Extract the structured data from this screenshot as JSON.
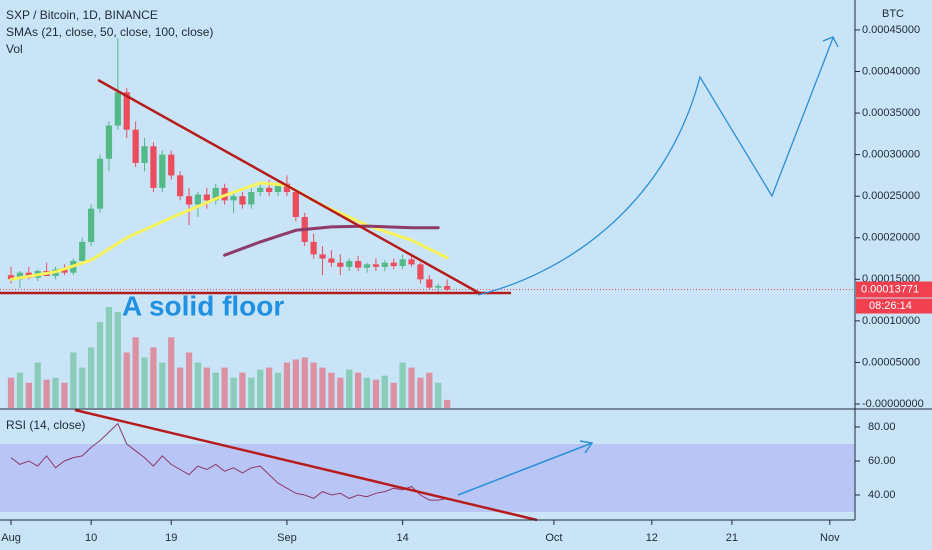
{
  "chart_data": [
    {
      "type": "candlestick",
      "title": "SXP / Bitcoin, 1D, BINANCE",
      "indicators": [
        "SMAs (21, close, 50, close, 100, close)",
        "Vol"
      ],
      "axis_label": "BTC",
      "annotations": [
        "A solid floor"
      ],
      "last_value_label": "0.00013771",
      "countdown": "08:26:14",
      "up_color": "#53b987",
      "down_color": "#eb4d5c",
      "x": [
        0,
        1,
        2,
        3,
        4,
        5,
        6,
        7,
        8,
        9,
        10,
        11,
        12,
        13,
        14,
        15,
        16,
        17,
        18,
        19,
        20,
        21,
        22,
        23,
        24,
        25,
        26,
        27,
        28,
        29,
        30,
        31,
        32,
        33,
        34,
        35,
        36,
        37,
        38,
        39,
        40,
        41,
        42,
        43,
        44,
        45,
        46,
        47,
        48,
        49
      ],
      "open": [
        0.000155,
        0.00015,
        0.000158,
        0.000152,
        0.00016,
        0.000154,
        0.000162,
        0.000158,
        0.000172,
        0.000195,
        0.000235,
        0.000295,
        0.000335,
        0.000375,
        0.00033,
        0.00029,
        0.00031,
        0.00026,
        0.0003,
        0.000275,
        0.00025,
        0.00024,
        0.000252,
        0.000245,
        0.00026,
        0.000245,
        0.00025,
        0.00024,
        0.000255,
        0.00026,
        0.000255,
        0.000265,
        0.000255,
        0.000225,
        0.000195,
        0.00018,
        0.000175,
        0.00017,
        0.000165,
        0.000172,
        0.000164,
        0.000168,
        0.000165,
        0.00017,
        0.000166,
        0.000174,
        0.000168,
        0.00015,
        0.00014,
        0.000142
      ],
      "high": [
        0.000165,
        0.00016,
        0.000165,
        0.000162,
        0.00017,
        0.000165,
        0.000168,
        0.000175,
        0.0002,
        0.00024,
        0.0003,
        0.00034,
        0.00044,
        0.00038,
        0.00034,
        0.00032,
        0.000315,
        0.000305,
        0.000305,
        0.00028,
        0.00026,
        0.000255,
        0.00026,
        0.000265,
        0.000265,
        0.000255,
        0.000255,
        0.00026,
        0.000265,
        0.00027,
        0.00027,
        0.000275,
        0.000258,
        0.00023,
        0.000205,
        0.00019,
        0.000185,
        0.00018,
        0.000175,
        0.000178,
        0.00017,
        0.000175,
        0.000173,
        0.000175,
        0.00018,
        0.00018,
        0.00017,
        0.000155,
        0.000145,
        0.00015
      ],
      "low": [
        0.000145,
        0.00014,
        0.00015,
        0.000148,
        0.000155,
        0.00015,
        0.000155,
        0.000155,
        0.00017,
        0.00019,
        0.00023,
        0.00028,
        0.00033,
        0.00032,
        0.000285,
        0.00028,
        0.000255,
        0.000255,
        0.00027,
        0.000245,
        0.000215,
        0.000225,
        0.000235,
        0.00024,
        0.00024,
        0.00023,
        0.000235,
        0.000235,
        0.00025,
        0.00025,
        0.00025,
        0.00025,
        0.00022,
        0.00019,
        0.000175,
        0.000155,
        0.000165,
        0.000155,
        0.00016,
        0.00016,
        0.000158,
        0.00016,
        0.00016,
        0.000162,
        0.000162,
        0.000165,
        0.000145,
        0.000138,
        0.000135,
        0.000136
      ],
      "close": [
        0.00015,
        0.000158,
        0.000152,
        0.00016,
        0.000154,
        0.000162,
        0.000158,
        0.000172,
        0.000195,
        0.000235,
        0.000295,
        0.000335,
        0.000375,
        0.00033,
        0.00029,
        0.00031,
        0.00026,
        0.0003,
        0.000275,
        0.00025,
        0.00024,
        0.000252,
        0.000245,
        0.00026,
        0.000245,
        0.00025,
        0.00024,
        0.000255,
        0.00026,
        0.000255,
        0.000265,
        0.000255,
        0.000225,
        0.000195,
        0.00018,
        0.000175,
        0.00017,
        0.000165,
        0.000172,
        0.000164,
        0.000168,
        0.000165,
        0.00017,
        0.000166,
        0.000174,
        0.000168,
        0.00015,
        0.00014,
        0.000142,
        0.00013771
      ],
      "volume": {
        "axis": "y2",
        "values": [
          30,
          35,
          25,
          45,
          28,
          30,
          25,
          55,
          40,
          60,
          85,
          100,
          95,
          55,
          70,
          50,
          60,
          45,
          70,
          40,
          55,
          45,
          40,
          35,
          40,
          30,
          35,
          30,
          38,
          40,
          35,
          45,
          48,
          50,
          45,
          40,
          35,
          30,
          38,
          35,
          30,
          28,
          32,
          25,
          45,
          40,
          30,
          35,
          25,
          8
        ]
      },
      "y2lim": [
        0,
        404
      ],
      "series": [
        {
          "color": "#f7f35c",
          "x": [
            0,
            5,
            9,
            13,
            18,
            23,
            28,
            31,
            35,
            40,
            45,
            49
          ],
          "values": [
            0.00015,
            0.000159,
            0.000173,
            0.0002,
            0.000224,
            0.000247,
            0.000266,
            0.000263,
            0.000239,
            0.000215,
            0.000197,
            0.000176
          ]
        },
        {
          "color": "#8e3a6a",
          "x": [
            24,
            28,
            32,
            36,
            40,
            45,
            48
          ],
          "values": [
            0.000179,
            0.000195,
            0.000209,
            0.000213,
            0.000214,
            0.000212,
            0.000212
          ]
        }
      ],
      "xlim": [
        -1.24,
        94.83
      ],
      "xticks": [
        {
          "value": 0,
          "label": "Aug"
        },
        {
          "value": 9,
          "label": "10"
        },
        {
          "value": 18,
          "label": "19"
        },
        {
          "value": 31,
          "label": "Sep"
        },
        {
          "value": 44,
          "label": "14"
        },
        {
          "value": 61,
          "label": "Oct"
        },
        {
          "value": 72,
          "label": "12"
        },
        {
          "value": 81,
          "label": "21"
        },
        {
          "value": 92,
          "label": "Nov"
        }
      ],
      "ylim": [
        -4.8e-06,
        0.000486
      ],
      "yticks": [
        {
          "value": 0.00045,
          "label": "0.00045000"
        },
        {
          "value": 0.0004,
          "label": "0.00040000"
        },
        {
          "value": 0.00035,
          "label": "0.00035000"
        },
        {
          "value": 0.0003,
          "label": "0.00030000"
        },
        {
          "value": 0.00025,
          "label": "0.00025000"
        },
        {
          "value": 0.0002,
          "label": "0.00020000"
        },
        {
          "value": 0.00015,
          "label": "0.00015000"
        },
        {
          "value": 0.0001,
          "label": "0.00010000"
        },
        {
          "value": 5e-05,
          "label": "0.00005000"
        },
        {
          "value": 0,
          "label": "-0.00000000"
        }
      ]
    },
    {
      "type": "line",
      "title": "RSI (14, close)",
      "color": "#8e3a6a",
      "x": [
        0,
        1,
        2,
        3,
        4,
        5,
        6,
        7,
        8,
        9,
        10,
        11,
        12,
        13,
        14,
        15,
        16,
        17,
        18,
        19,
        20,
        21,
        22,
        23,
        24,
        25,
        26,
        27,
        28,
        29,
        30,
        31,
        32,
        33,
        34,
        35,
        36,
        37,
        38,
        39,
        40,
        41,
        42,
        43,
        44,
        45,
        46,
        47,
        48,
        49
      ],
      "values": [
        62,
        58,
        60,
        57,
        63,
        56,
        60,
        62,
        63,
        68,
        72,
        77,
        82,
        70,
        66,
        62,
        57,
        63,
        58,
        55,
        52,
        57,
        55,
        58,
        54,
        56,
        53,
        56,
        57,
        52,
        47,
        44,
        41,
        40,
        38,
        42,
        40,
        41,
        38,
        40,
        39,
        41,
        42,
        44,
        43,
        45,
        40,
        37,
        37,
        38
      ],
      "band": [
        30,
        70
      ],
      "xlim": [
        -1.24,
        94.83
      ],
      "ylim": [
        25.3,
        90
      ],
      "yticks": [
        {
          "value": 80,
          "label": "80.00"
        },
        {
          "value": 60,
          "label": "60.00"
        },
        {
          "value": 40,
          "label": "40.00"
        }
      ]
    }
  ]
}
